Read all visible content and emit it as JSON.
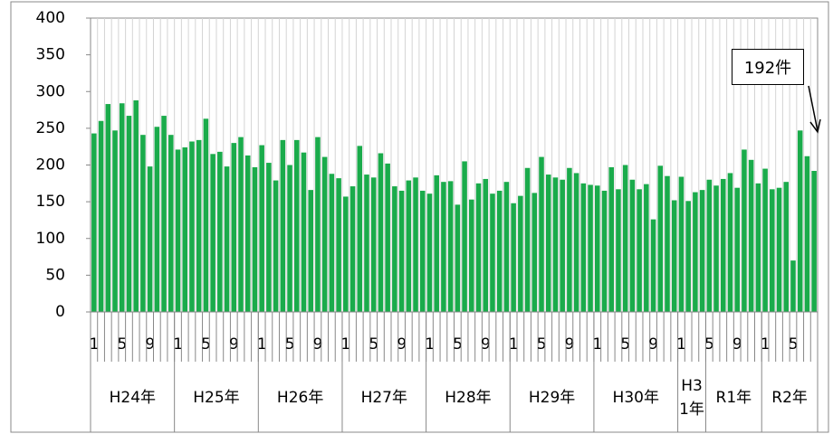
{
  "chart_data": {
    "type": "bar",
    "color": "#1aab4b",
    "grid": "x",
    "ylim": [
      0,
      400
    ],
    "yticks": [
      0,
      50,
      100,
      150,
      200,
      250,
      300,
      350,
      400
    ],
    "annotation": "192件",
    "category_groups": [
      {
        "label": "H24年",
        "categories": [
          "1",
          null,
          null,
          null,
          "5",
          null,
          null,
          null,
          "9",
          null,
          null,
          null
        ]
      },
      {
        "label": "H25年",
        "categories": [
          "1",
          null,
          null,
          null,
          "5",
          null,
          null,
          null,
          "9",
          null,
          null,
          null
        ]
      },
      {
        "label": "H26年",
        "categories": [
          "1",
          null,
          null,
          null,
          "5",
          null,
          null,
          null,
          "9",
          null,
          null,
          null
        ]
      },
      {
        "label": "H27年",
        "categories": [
          "1",
          null,
          null,
          null,
          "5",
          null,
          null,
          null,
          "9",
          null,
          null,
          null
        ]
      },
      {
        "label": "H28年",
        "categories": [
          "1",
          null,
          null,
          null,
          "5",
          null,
          null,
          null,
          "9",
          null,
          null,
          null
        ]
      },
      {
        "label": "H29年",
        "categories": [
          "1",
          null,
          null,
          null,
          "5",
          null,
          null,
          null,
          "9",
          null,
          null,
          null
        ]
      },
      {
        "label": "H30年",
        "categories": [
          "1",
          null,
          null,
          null,
          "5",
          null,
          null,
          null,
          "9",
          null,
          null,
          null
        ]
      },
      {
        "label": "H31年",
        "categories": [
          "1",
          null,
          null,
          null
        ]
      },
      {
        "label": "R1年",
        "categories": [
          "5",
          null,
          null,
          null,
          "9",
          null,
          null,
          null
        ]
      },
      {
        "label": "R2年",
        "categories": [
          "1",
          null,
          null,
          null,
          "5",
          null,
          null,
          null
        ]
      }
    ],
    "values": [
      243,
      260,
      283,
      247,
      284,
      267,
      288,
      241,
      198,
      252,
      267,
      241,
      221,
      224,
      232,
      234,
      263,
      215,
      218,
      198,
      230,
      238,
      213,
      197,
      227,
      203,
      179,
      234,
      200,
      234,
      217,
      166,
      238,
      211,
      188,
      182,
      157,
      171,
      226,
      187,
      183,
      216,
      202,
      171,
      165,
      179,
      183,
      165,
      161,
      186,
      177,
      178,
      146,
      205,
      153,
      175,
      181,
      161,
      165,
      177,
      148,
      158,
      196,
      162,
      211,
      187,
      183,
      180,
      196,
      189,
      175,
      173,
      172,
      165,
      197,
      167,
      200,
      180,
      167,
      174,
      126,
      199,
      185,
      152,
      184,
      151,
      163,
      166,
      180,
      172,
      181,
      189,
      169,
      221,
      207,
      175,
      195,
      167,
      169,
      177,
      70,
      247,
      212,
      192
    ]
  }
}
